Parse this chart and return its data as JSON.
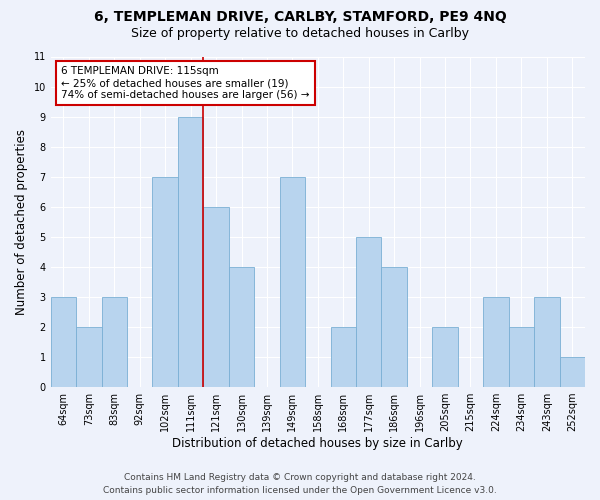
{
  "title": "6, TEMPLEMAN DRIVE, CARLBY, STAMFORD, PE9 4NQ",
  "subtitle": "Size of property relative to detached houses in Carlby",
  "xlabel": "Distribution of detached houses by size in Carlby",
  "ylabel": "Number of detached properties",
  "categories": [
    "64sqm",
    "73sqm",
    "83sqm",
    "92sqm",
    "102sqm",
    "111sqm",
    "121sqm",
    "130sqm",
    "139sqm",
    "149sqm",
    "158sqm",
    "168sqm",
    "177sqm",
    "186sqm",
    "196sqm",
    "205sqm",
    "215sqm",
    "224sqm",
    "234sqm",
    "243sqm",
    "252sqm"
  ],
  "values": [
    3,
    2,
    3,
    0,
    7,
    9,
    6,
    4,
    0,
    7,
    0,
    2,
    5,
    4,
    0,
    2,
    0,
    3,
    2,
    3,
    1
  ],
  "bar_color": "#b8d4ee",
  "bar_edge_color": "#7aafd4",
  "highlight_line_color": "#cc0000",
  "annotation_box_text": "6 TEMPLEMAN DRIVE: 115sqm\n← 25% of detached houses are smaller (19)\n74% of semi-detached houses are larger (56) →",
  "annotation_box_color": "#ffffff",
  "annotation_box_edge_color": "#cc0000",
  "ylim": [
    0,
    11
  ],
  "yticks": [
    0,
    1,
    2,
    3,
    4,
    5,
    6,
    7,
    8,
    9,
    10,
    11
  ],
  "footer_line1": "Contains HM Land Registry data © Crown copyright and database right 2024.",
  "footer_line2": "Contains public sector information licensed under the Open Government Licence v3.0.",
  "bg_color": "#eef2fb",
  "grid_color": "#ffffff",
  "title_fontsize": 10,
  "subtitle_fontsize": 9,
  "label_fontsize": 8.5,
  "tick_fontsize": 7,
  "footer_fontsize": 6.5,
  "annotation_fontsize": 7.5
}
